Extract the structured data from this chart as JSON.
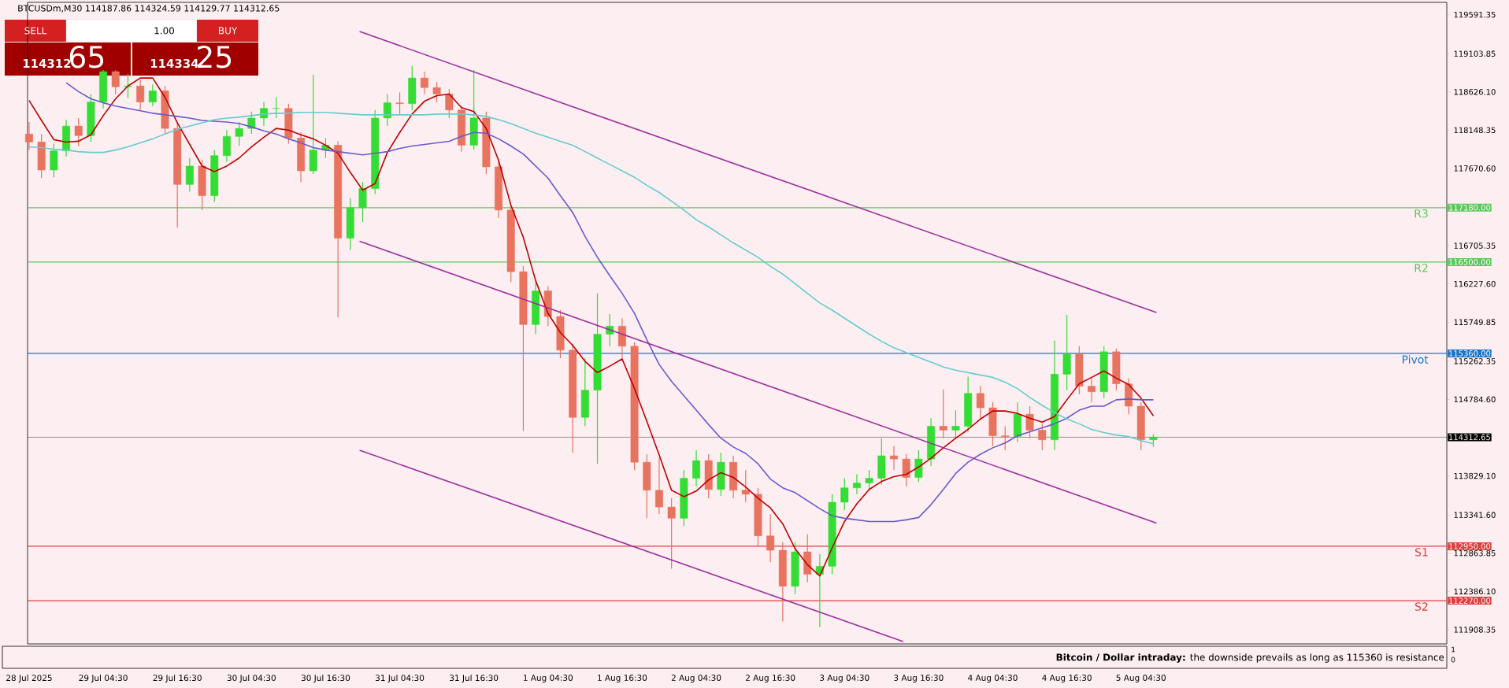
{
  "chart_data": {
    "type": "candlestick",
    "title": "BTCUSDm,M30 114187.86 114324.59 114129.77 114312.65",
    "x": [
      "2025-07-28T16:30",
      "2025-07-28T18:30",
      "2025-07-28T20:30",
      "2025-07-28T22:30",
      "2025-07-29T00:30",
      "2025-07-29T02:30",
      "2025-07-29T04:30",
      "2025-07-29T06:30",
      "2025-07-29T08:30",
      "2025-07-29T10:30",
      "2025-07-29T12:30",
      "2025-07-29T14:30",
      "2025-07-29T16:30",
      "2025-07-29T18:30",
      "2025-07-29T20:30",
      "2025-07-29T22:30",
      "2025-07-30T00:30",
      "2025-07-30T02:30",
      "2025-07-30T04:30",
      "2025-07-30T06:30",
      "2025-07-30T08:30",
      "2025-07-30T10:30",
      "2025-07-30T12:30",
      "2025-07-30T14:30",
      "2025-07-30T16:30",
      "2025-07-30T18:30",
      "2025-07-30T20:30",
      "2025-07-30T22:30",
      "2025-07-31T00:30",
      "2025-07-31T02:30",
      "2025-07-31T04:30",
      "2025-07-31T06:30",
      "2025-07-31T08:30",
      "2025-07-31T10:30",
      "2025-07-31T12:30",
      "2025-07-31T14:30",
      "2025-07-31T16:30",
      "2025-07-31T18:30",
      "2025-07-31T20:30",
      "2025-07-31T22:30",
      "2025-08-01T00:30",
      "2025-08-01T02:30",
      "2025-08-01T04:30",
      "2025-08-01T06:30",
      "2025-08-01T08:30",
      "2025-08-01T10:30",
      "2025-08-01T12:30",
      "2025-08-01T14:30",
      "2025-08-01T16:30",
      "2025-08-01T18:30",
      "2025-08-01T20:30",
      "2025-08-01T22:30",
      "2025-08-02T00:30",
      "2025-08-02T02:30",
      "2025-08-02T04:30",
      "2025-08-02T06:30",
      "2025-08-02T08:30",
      "2025-08-02T10:30",
      "2025-08-02T12:30",
      "2025-08-02T14:30",
      "2025-08-02T16:30",
      "2025-08-02T18:30",
      "2025-08-02T20:30",
      "2025-08-02T22:30",
      "2025-08-03T00:30",
      "2025-08-03T02:30",
      "2025-08-03T04:30",
      "2025-08-03T06:30",
      "2025-08-03T08:30",
      "2025-08-03T10:30",
      "2025-08-03T12:30",
      "2025-08-03T14:30",
      "2025-08-03T16:30",
      "2025-08-03T18:30",
      "2025-08-03T20:30",
      "2025-08-03T22:30",
      "2025-08-04T00:30",
      "2025-08-04T02:30",
      "2025-08-04T04:30",
      "2025-08-04T06:30",
      "2025-08-04T08:30",
      "2025-08-04T10:30",
      "2025-08-04T12:30",
      "2025-08-04T14:30",
      "2025-08-04T16:30",
      "2025-08-04T18:30",
      "2025-08-04T20:30",
      "2025-08-04T22:30",
      "2025-08-05T00:30",
      "2025-08-05T02:30",
      "2025-08-05T04:30",
      "2025-08-05T06:30"
    ],
    "ohlc": [
      [
        118100,
        118250,
        117900,
        118000
      ],
      [
        118000,
        118100,
        117550,
        117650
      ],
      [
        117650,
        117980,
        117560,
        117890
      ],
      [
        117890,
        118280,
        117820,
        118200
      ],
      [
        118200,
        118300,
        117950,
        118080
      ],
      [
        118080,
        118600,
        118000,
        118500
      ],
      [
        118500,
        118900,
        118420,
        118880
      ],
      [
        118880,
        118900,
        118600,
        118690
      ],
      [
        118690,
        118850,
        118550,
        118700
      ],
      [
        118700,
        118780,
        118400,
        118500
      ],
      [
        118500,
        118720,
        118450,
        118640
      ],
      [
        118640,
        118700,
        118100,
        118170
      ],
      [
        118170,
        118250,
        116930,
        117470
      ],
      [
        117470,
        117800,
        117380,
        117700
      ],
      [
        117700,
        117780,
        117150,
        117330
      ],
      [
        117330,
        117900,
        117250,
        117830
      ],
      [
        117830,
        118150,
        117750,
        118070
      ],
      [
        118070,
        118250,
        117950,
        118170
      ],
      [
        118170,
        118380,
        118100,
        118300
      ],
      [
        118300,
        118500,
        118200,
        118420
      ],
      [
        118420,
        118560,
        118300,
        118420
      ],
      [
        118420,
        118480,
        117980,
        118050
      ],
      [
        118050,
        118120,
        117500,
        117640
      ],
      [
        117640,
        118840,
        117600,
        117900
      ],
      [
        117900,
        118050,
        117800,
        117960
      ],
      [
        117960,
        118010,
        115810,
        116800
      ],
      [
        116800,
        117300,
        116650,
        117180
      ],
      [
        117180,
        117500,
        117000,
        117420
      ],
      [
        117420,
        118400,
        117350,
        118300
      ],
      [
        118300,
        118600,
        118200,
        118490
      ],
      [
        118490,
        118620,
        118350,
        118480
      ],
      [
        118480,
        118950,
        118400,
        118800
      ],
      [
        118800,
        118880,
        118600,
        118680
      ],
      [
        118680,
        118750,
        118500,
        118600
      ],
      [
        118600,
        118660,
        118300,
        118400
      ],
      [
        118400,
        118450,
        117880,
        117960
      ],
      [
        117960,
        118900,
        117900,
        118300
      ],
      [
        118300,
        118380,
        117600,
        117690
      ],
      [
        117690,
        117760,
        117050,
        117150
      ],
      [
        117150,
        117200,
        116250,
        116380
      ],
      [
        116380,
        116450,
        114390,
        115720
      ],
      [
        115720,
        116250,
        115600,
        116140
      ],
      [
        116140,
        116200,
        115700,
        115820
      ],
      [
        115820,
        115900,
        115300,
        115400
      ],
      [
        115400,
        115480,
        114120,
        114560
      ],
      [
        114560,
        115300,
        114450,
        114900
      ],
      [
        114900,
        116110,
        113980,
        115600
      ],
      [
        115600,
        115850,
        115450,
        115700
      ],
      [
        115700,
        115800,
        115300,
        115450
      ],
      [
        115450,
        115500,
        113900,
        114000
      ],
      [
        114000,
        114100,
        113300,
        113650
      ],
      [
        113650,
        114050,
        113350,
        113440
      ],
      [
        113440,
        113550,
        112670,
        113300
      ],
      [
        113300,
        113900,
        113200,
        113800
      ],
      [
        113800,
        114150,
        113700,
        114020
      ],
      [
        114020,
        114100,
        113550,
        113660
      ],
      [
        113660,
        114120,
        113580,
        114000
      ],
      [
        114000,
        114080,
        113550,
        113650
      ],
      [
        113650,
        113900,
        113500,
        113600
      ],
      [
        113600,
        113680,
        112950,
        113080
      ],
      [
        113080,
        113350,
        112750,
        112900
      ],
      [
        112900,
        113000,
        112010,
        112450
      ],
      [
        112450,
        113000,
        112350,
        112880
      ],
      [
        112880,
        113100,
        112500,
        112600
      ],
      [
        112600,
        112850,
        111940,
        112700
      ],
      [
        112700,
        113600,
        112600,
        113500
      ],
      [
        113500,
        113800,
        113400,
        113680
      ],
      [
        113680,
        113850,
        113600,
        113740
      ],
      [
        113740,
        113900,
        113650,
        113800
      ],
      [
        113800,
        114300,
        113720,
        114080
      ],
      [
        114080,
        114200,
        113900,
        114040
      ],
      [
        114040,
        114100,
        113700,
        113810
      ],
      [
        113810,
        114150,
        113750,
        114040
      ],
      [
        114040,
        114550,
        113950,
        114450
      ],
      [
        114450,
        114910,
        114300,
        114400
      ],
      [
        114400,
        114650,
        114300,
        114450
      ],
      [
        114450,
        115070,
        114380,
        114860
      ],
      [
        114860,
        114950,
        114550,
        114680
      ],
      [
        114680,
        114750,
        114200,
        114330
      ],
      [
        114330,
        114450,
        114150,
        114320
      ],
      [
        114320,
        114750,
        114250,
        114600
      ],
      [
        114600,
        114700,
        114300,
        114400
      ],
      [
        114400,
        114480,
        114150,
        114280
      ],
      [
        114280,
        115520,
        114150,
        115100
      ],
      [
        115100,
        115840,
        114900,
        115350
      ],
      [
        115350,
        115450,
        114850,
        114950
      ],
      [
        114950,
        115050,
        114750,
        114880
      ],
      [
        114880,
        115450,
        114800,
        115380
      ],
      [
        115380,
        115420,
        114900,
        114980
      ],
      [
        114980,
        115050,
        114600,
        114700
      ],
      [
        114700,
        114750,
        114150,
        114280
      ],
      [
        114280,
        114350,
        114190,
        114312.65
      ]
    ],
    "colors": [
      "#e8735f",
      "#e8735f",
      "#33dd33",
      "#33dd33",
      "#e8735f",
      "#33dd33",
      "#33dd33",
      "#e8735f",
      "#33dd33",
      "#e8735f",
      "#33dd33",
      "#e8735f",
      "#e8735f",
      "#33dd33",
      "#e8735f",
      "#33dd33",
      "#33dd33",
      "#33dd33",
      "#33dd33",
      "#33dd33",
      "#33dd33",
      "#e8735f",
      "#e8735f",
      "#33dd33",
      "#33dd33",
      "#e8735f",
      "#33dd33",
      "#33dd33",
      "#33dd33",
      "#33dd33",
      "#e8735f",
      "#33dd33",
      "#e8735f",
      "#e8735f",
      "#e8735f",
      "#e8735f",
      "#33dd33",
      "#e8735f",
      "#e8735f",
      "#e8735f",
      "#e8735f",
      "#33dd33",
      "#e8735f",
      "#e8735f",
      "#e8735f",
      "#33dd33",
      "#33dd33",
      "#33dd33",
      "#e8735f",
      "#e8735f",
      "#e8735f",
      "#e8735f",
      "#e8735f",
      "#33dd33",
      "#33dd33",
      "#e8735f",
      "#33dd33",
      "#e8735f",
      "#e8735f",
      "#e8735f",
      "#e8735f",
      "#e8735f",
      "#33dd33",
      "#e8735f",
      "#33dd33",
      "#33dd33",
      "#33dd33",
      "#33dd33",
      "#33dd33",
      "#33dd33",
      "#e8735f",
      "#e8735f",
      "#33dd33",
      "#33dd33",
      "#e8735f",
      "#33dd33",
      "#33dd33",
      "#e8735f",
      "#e8735f",
      "#e8735f",
      "#33dd33",
      "#e8735f",
      "#e8735f",
      "#33dd33",
      "#33dd33",
      "#e8735f",
      "#e8735f",
      "#33dd33",
      "#e8735f",
      "#e8735f",
      "#e8735f",
      "#33dd33"
    ],
    "series": [
      {
        "type": "line",
        "color": "#c00000",
        "values": [
          118520,
          118270,
          118030,
          118000,
          118010,
          118090,
          118330,
          118540,
          118700,
          118800,
          118800,
          118560,
          118240,
          117970,
          117700,
          117630,
          117700,
          117800,
          117940,
          118060,
          118170,
          118150,
          118090,
          118040,
          117960,
          117860,
          117620,
          117400,
          117480,
          117870,
          118120,
          118350,
          118510,
          118580,
          118600,
          118430,
          118380,
          118170,
          117770,
          117210,
          116810,
          116270,
          115860,
          115620,
          115460,
          115260,
          115120,
          115200,
          115290,
          114920,
          114510,
          114090,
          113650,
          113570,
          113640,
          113780,
          113870,
          113810,
          113690,
          113550,
          113430,
          113230,
          112920,
          112720,
          112580,
          112930,
          113260,
          113480,
          113660,
          113760,
          113820,
          113850,
          113940,
          114050,
          114180,
          114300,
          114410,
          114540,
          114640,
          114640,
          114610,
          114550,
          114500,
          114570,
          114780,
          114980,
          115060,
          115140,
          115050,
          114970,
          114800,
          114580
        ]
      },
      {
        "type": "line",
        "color": "#6a5acd",
        "values": [
          null,
          null,
          null,
          118740,
          118630,
          118540,
          118490,
          118450,
          118420,
          118390,
          118360,
          118340,
          118320,
          118300,
          118270,
          118260,
          118250,
          118230,
          118190,
          118140,
          118100,
          118040,
          117990,
          117930,
          117900,
          117880,
          117860,
          117840,
          117860,
          117880,
          117920,
          117950,
          117970,
          117990,
          118010,
          118070,
          118120,
          118110,
          118040,
          117950,
          117850,
          117700,
          117550,
          117330,
          117120,
          116820,
          116560,
          116330,
          116110,
          115860,
          115530,
          115220,
          115010,
          114830,
          114650,
          114470,
          114300,
          114190,
          114110,
          113980,
          113790,
          113680,
          113620,
          113520,
          113420,
          113330,
          113300,
          113280,
          113260,
          113260,
          113260,
          113280,
          113310,
          113470,
          113660,
          113860,
          114000,
          114100,
          114180,
          114240,
          114330,
          114380,
          114430,
          114480,
          114550,
          114650,
          114700,
          114700,
          114780,
          114790,
          114780,
          114780
        ]
      },
      {
        "type": "line",
        "color": "#66cccc",
        "values": [
          117940,
          117930,
          117910,
          117900,
          117880,
          117870,
          117870,
          117900,
          117940,
          117990,
          118040,
          118100,
          118160,
          118200,
          118240,
          118280,
          118300,
          118310,
          118330,
          118350,
          118360,
          118360,
          118370,
          118370,
          118370,
          118360,
          118350,
          118340,
          118340,
          118340,
          118340,
          118340,
          118340,
          118350,
          118350,
          118350,
          118340,
          118320,
          118280,
          118230,
          118170,
          118110,
          118060,
          118010,
          117960,
          117880,
          117800,
          117720,
          117640,
          117560,
          117460,
          117370,
          117260,
          117150,
          117030,
          116940,
          116840,
          116740,
          116650,
          116560,
          116450,
          116350,
          116230,
          116110,
          115990,
          115900,
          115800,
          115700,
          115600,
          115510,
          115430,
          115370,
          115310,
          115250,
          115190,
          115150,
          115120,
          115090,
          115060,
          115000,
          114920,
          114810,
          114710,
          114620,
          114540,
          114480,
          114410,
          114370,
          114340,
          114320,
          114270,
          114230
        ]
      },
      {
        "type": "line",
        "color": "#9b309b",
        "x": [
          "2025-07-30T22:00",
          "2025-08-05T07:00"
        ],
        "values": [
          119380,
          115870
        ]
      },
      {
        "type": "line",
        "color": "#9b309b",
        "x": [
          "2025-07-30T22:00",
          "2025-08-05T07:00"
        ],
        "values": [
          116760,
          113240
        ]
      },
      {
        "type": "line",
        "color": "#9b309b",
        "x": [
          "2025-07-30T22:00",
          "2025-08-03T14:00"
        ],
        "values": [
          114150,
          111760
        ]
      }
    ],
    "xlim": [
      "2025-07-28T16:15",
      "2025-08-07T06:00"
    ],
    "ylim": [
      111730,
      119745
    ],
    "xticks": [
      {
        "value": "2025-07-28T16:30",
        "label": "28 Jul 2025"
      },
      {
        "value": "2025-07-29T04:30",
        "label": "29 Jul 04:30"
      },
      {
        "value": "2025-07-29T16:30",
        "label": "29 Jul 16:30"
      },
      {
        "value": "2025-07-30T04:30",
        "label": "30 Jul 04:30"
      },
      {
        "value": "2025-07-30T16:30",
        "label": "30 Jul 16:30"
      },
      {
        "value": "2025-07-31T04:30",
        "label": "31 Jul 04:30"
      },
      {
        "value": "2025-07-31T16:30",
        "label": "31 Jul 16:30"
      },
      {
        "value": "2025-08-01T04:30",
        "label": "1 Aug 04:30"
      },
      {
        "value": "2025-08-01T16:30",
        "label": "1 Aug 16:30"
      },
      {
        "value": "2025-08-02T04:30",
        "label": "2 Aug 04:30"
      },
      {
        "value": "2025-08-02T16:30",
        "label": "2 Aug 16:30"
      },
      {
        "value": "2025-08-03T04:30",
        "label": "3 Aug 04:30"
      },
      {
        "value": "2025-08-03T16:30",
        "label": "3 Aug 16:30"
      },
      {
        "value": "2025-08-04T04:30",
        "label": "4 Aug 04:30"
      },
      {
        "value": "2025-08-04T16:30",
        "label": "4 Aug 16:30"
      },
      {
        "value": "2025-08-05T04:30",
        "label": "5 Aug 04:30"
      }
    ],
    "yticks": [
      {
        "value": 119591.35,
        "label": "119591.35"
      },
      {
        "value": 119103.85,
        "label": "119103.85"
      },
      {
        "value": 118626.1,
        "label": "118626.10"
      },
      {
        "value": 118148.35,
        "label": "118148.35"
      },
      {
        "value": 117670.6,
        "label": "117670.60"
      },
      {
        "value": 116705.35,
        "label": "116705.35"
      },
      {
        "value": 116227.6,
        "label": "116227.60"
      },
      {
        "value": 115749.85,
        "label": "115749.85"
      },
      {
        "value": 115262.35,
        "label": "115262.35"
      },
      {
        "value": 114784.6,
        "label": "114784.60"
      },
      {
        "value": 113829.1,
        "label": "113829.10"
      },
      {
        "value": 113341.6,
        "label": "113341.60"
      },
      {
        "value": 112863.85,
        "label": "112863.85"
      },
      {
        "value": 112386.1,
        "label": "112386.10"
      },
      {
        "value": 111908.35,
        "label": "111908.35"
      }
    ],
    "ref_lines": [
      {
        "axis": "y",
        "value": 117180,
        "label": "R3",
        "color": "#5cc85c"
      },
      {
        "axis": "y",
        "value": 116500,
        "label": "R2",
        "color": "#5cc85c"
      },
      {
        "axis": "y",
        "value": 115360,
        "label": "Pivot",
        "color": "#1874cd"
      },
      {
        "axis": "y",
        "value": 114312.65,
        "label": null,
        "color": "#000000"
      },
      {
        "axis": "y",
        "value": 112950,
        "label": "S1",
        "color": "#e03c3c"
      },
      {
        "axis": "y",
        "value": 112270,
        "label": "S2",
        "color": "#e03c3c"
      }
    ],
    "annotations": [
      "SELL",
      "1.00",
      "BUY",
      "114312",
      "65",
      "114334",
      "25",
      "**Bitcoin / Dollar intraday:** the downside prevails as long as 115360 is resistance",
      "1",
      "0",
      "117180.00",
      "116500.00",
      "115360.00",
      "114312.65",
      "112950.00",
      "112270.00"
    ]
  }
}
